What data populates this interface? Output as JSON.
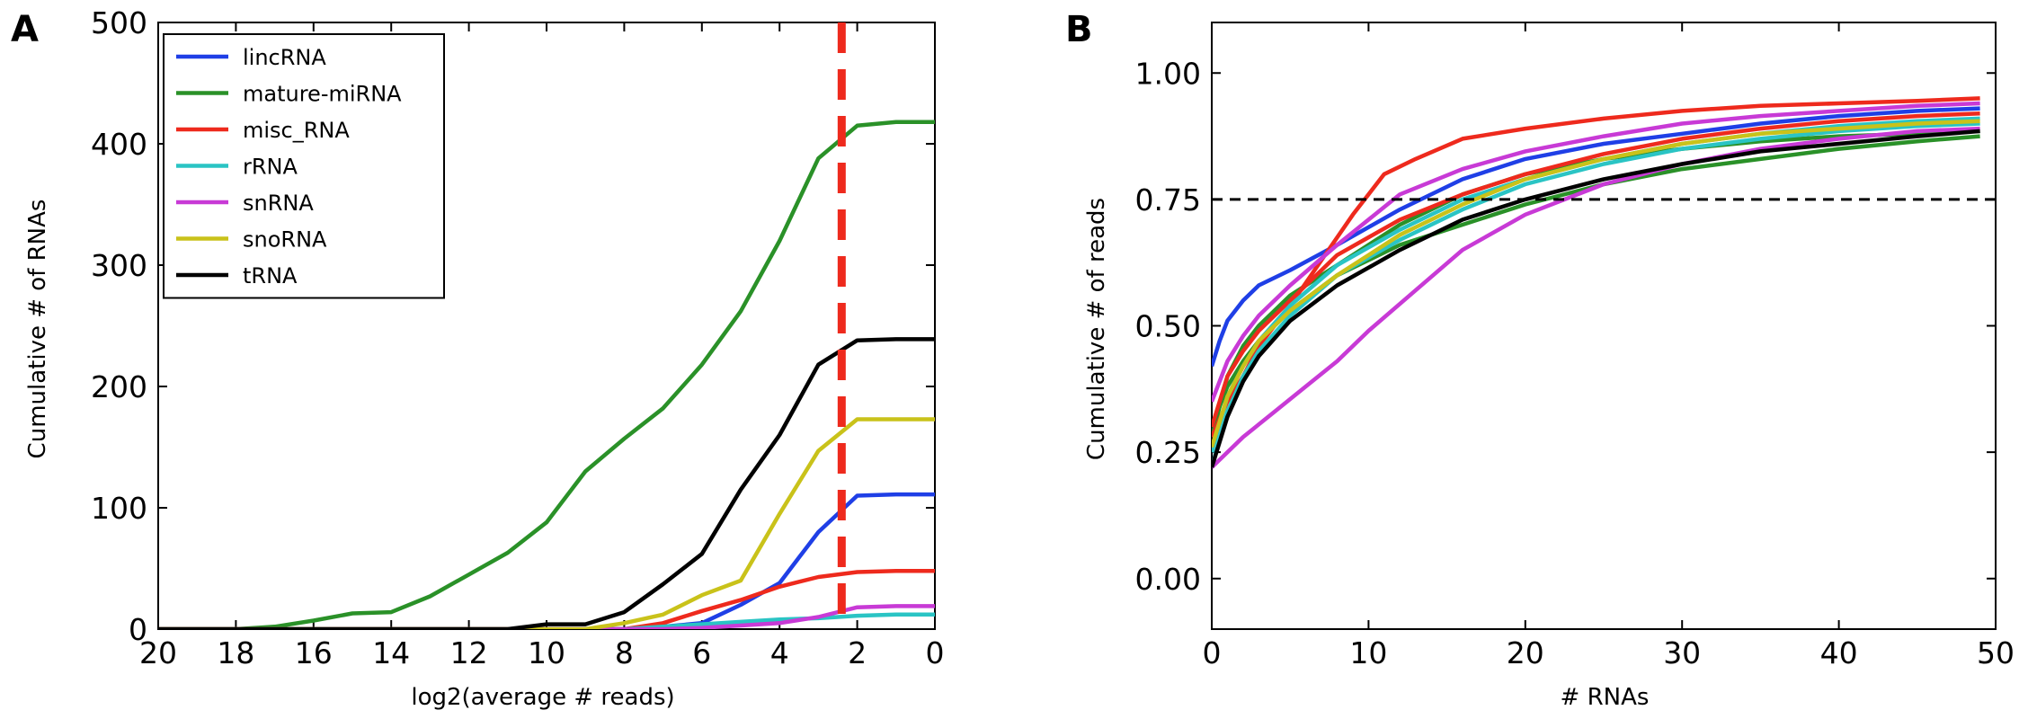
{
  "chart_data": [
    {
      "panel_label": "A",
      "type": "line",
      "xlabel": "log2(average # reads)",
      "ylabel": "Cumulative # of RNAs",
      "xlim": [
        20,
        0
      ],
      "ylim": [
        0,
        500
      ],
      "x_reversed": true,
      "xticks": [
        "20",
        "18",
        "16",
        "14",
        "12",
        "10",
        "8",
        "6",
        "4",
        "2",
        "0"
      ],
      "yticks": [
        "0",
        "100",
        "200",
        "300",
        "400",
        "500"
      ],
      "legend_position": "top-left",
      "vline": {
        "x": 2.4,
        "color": "#ee2a1d",
        "style": "dashed"
      },
      "series": [
        {
          "name": "lincRNA",
          "color": "#1f3fe6",
          "x": [
            20,
            10,
            9,
            8,
            7,
            6,
            5,
            4,
            3,
            2,
            1,
            0
          ],
          "y": [
            0,
            0,
            0,
            0,
            2,
            5,
            20,
            38,
            80,
            110,
            111,
            111
          ]
        },
        {
          "name": "mature-miRNA",
          "color": "#2a9128",
          "x": [
            20,
            18,
            17,
            16,
            15,
            14,
            13,
            12,
            11,
            10,
            9,
            8,
            7,
            6,
            5,
            4,
            3,
            2,
            1,
            0
          ],
          "y": [
            0,
            0,
            2,
            7,
            13,
            14,
            27,
            45,
            63,
            88,
            130,
            157,
            182,
            218,
            262,
            320,
            388,
            415,
            418,
            418
          ]
        },
        {
          "name": "misc_RNA",
          "color": "#ee2a1d",
          "x": [
            20,
            10,
            9,
            8,
            7,
            6,
            5,
            4,
            3,
            2,
            1,
            0
          ],
          "y": [
            0,
            0,
            0,
            0,
            5,
            15,
            24,
            35,
            43,
            47,
            48,
            48
          ]
        },
        {
          "name": "rRNA",
          "color": "#2ac4c4",
          "x": [
            20,
            10,
            9,
            8,
            7,
            6,
            5,
            4,
            3,
            2,
            1,
            0
          ],
          "y": [
            0,
            0,
            0,
            0,
            2,
            4,
            6,
            8,
            9,
            11,
            12,
            12
          ]
        },
        {
          "name": "snRNA",
          "color": "#c83ad6",
          "x": [
            20,
            10,
            9,
            8,
            7,
            6,
            5,
            4,
            3,
            2,
            1,
            0
          ],
          "y": [
            0,
            0,
            0,
            0,
            0,
            1,
            3,
            5,
            10,
            18,
            19,
            19
          ]
        },
        {
          "name": "snoRNA",
          "color": "#c9c21a",
          "x": [
            20,
            10,
            9,
            8,
            7,
            6,
            5,
            4,
            3,
            2,
            1,
            0
          ],
          "y": [
            0,
            0,
            0,
            5,
            12,
            28,
            40,
            95,
            147,
            173,
            173,
            173
          ]
        },
        {
          "name": "tRNA",
          "color": "#000000",
          "x": [
            20,
            11,
            10,
            9,
            8,
            7,
            6,
            5,
            4,
            3,
            2,
            1,
            0
          ],
          "y": [
            0,
            0,
            4,
            4,
            14,
            37,
            62,
            115,
            160,
            218,
            238,
            239,
            239
          ]
        }
      ]
    },
    {
      "panel_label": "B",
      "type": "line",
      "xlabel": "# RNAs",
      "ylabel": "Cumulative # of reads",
      "xlim": [
        0,
        50
      ],
      "ylim": [
        -0.1,
        1.1
      ],
      "xticks": [
        "0",
        "10",
        "20",
        "30",
        "40",
        "50"
      ],
      "yticks": [
        "0.00",
        "0.25",
        "0.50",
        "0.75",
        "1.00"
      ],
      "hline": {
        "y": 0.75,
        "color": "#000000",
        "style": "dashed"
      },
      "series": [
        {
          "color": "#1f3fe6",
          "x": [
            0,
            0.5,
            1,
            2,
            3,
            5,
            8,
            12,
            16,
            20,
            25,
            30,
            35,
            40,
            45,
            49
          ],
          "y": [
            0.42,
            0.47,
            0.51,
            0.55,
            0.58,
            0.61,
            0.66,
            0.73,
            0.79,
            0.83,
            0.86,
            0.88,
            0.9,
            0.915,
            0.925,
            0.93
          ]
        },
        {
          "color": "#2a9128",
          "x": [
            0,
            1,
            2,
            3,
            5,
            8,
            12,
            16,
            20,
            25,
            30,
            35,
            40,
            45,
            49
          ],
          "y": [
            0.3,
            0.38,
            0.43,
            0.47,
            0.53,
            0.6,
            0.66,
            0.7,
            0.74,
            0.78,
            0.81,
            0.83,
            0.85,
            0.865,
            0.875
          ]
        },
        {
          "color": "#2a9128",
          "x": [
            0,
            1,
            2,
            3,
            5,
            8,
            12,
            16,
            20,
            25,
            30,
            35,
            40,
            45,
            49
          ],
          "y": [
            0.28,
            0.4,
            0.46,
            0.5,
            0.56,
            0.62,
            0.7,
            0.76,
            0.8,
            0.83,
            0.85,
            0.865,
            0.875,
            0.88,
            0.885
          ]
        },
        {
          "color": "#ee2a1d",
          "x": [
            0,
            1,
            2,
            3,
            5,
            7,
            9,
            11,
            13,
            16,
            20,
            25,
            30,
            35,
            40,
            45,
            49
          ],
          "y": [
            0.28,
            0.35,
            0.4,
            0.46,
            0.54,
            0.63,
            0.72,
            0.8,
            0.83,
            0.87,
            0.89,
            0.91,
            0.925,
            0.935,
            0.94,
            0.945,
            0.95
          ]
        },
        {
          "color": "#ee2a1d",
          "x": [
            0,
            1,
            2,
            3,
            5,
            8,
            12,
            16,
            20,
            25,
            30,
            35,
            40,
            45,
            49
          ],
          "y": [
            0.3,
            0.4,
            0.45,
            0.49,
            0.55,
            0.64,
            0.71,
            0.76,
            0.8,
            0.84,
            0.87,
            0.89,
            0.905,
            0.915,
            0.92
          ]
        },
        {
          "color": "#2ac4c4",
          "x": [
            0,
            1,
            2,
            3,
            5,
            8,
            12,
            16,
            20,
            25,
            30,
            35,
            40,
            45,
            49
          ],
          "y": [
            0.22,
            0.33,
            0.4,
            0.45,
            0.52,
            0.6,
            0.67,
            0.73,
            0.78,
            0.82,
            0.85,
            0.87,
            0.885,
            0.895,
            0.9
          ]
        },
        {
          "color": "#2ac4c4",
          "x": [
            0,
            1,
            2,
            3,
            5,
            8,
            12,
            16,
            20,
            25,
            30,
            35,
            40,
            45,
            49
          ],
          "y": [
            0.25,
            0.36,
            0.42,
            0.47,
            0.54,
            0.62,
            0.69,
            0.75,
            0.79,
            0.83,
            0.86,
            0.88,
            0.895,
            0.905,
            0.91
          ]
        },
        {
          "color": "#c83ad6",
          "x": [
            0,
            2,
            4,
            6,
            8,
            10,
            13,
            16,
            20,
            25,
            30,
            35,
            40,
            45,
            49
          ],
          "y": [
            0.22,
            0.28,
            0.33,
            0.38,
            0.43,
            0.49,
            0.57,
            0.65,
            0.72,
            0.78,
            0.82,
            0.85,
            0.87,
            0.885,
            0.89
          ]
        },
        {
          "color": "#c83ad6",
          "x": [
            0,
            1,
            2,
            3,
            5,
            8,
            12,
            16,
            20,
            25,
            30,
            35,
            40,
            45,
            49
          ],
          "y": [
            0.35,
            0.43,
            0.48,
            0.52,
            0.58,
            0.66,
            0.76,
            0.81,
            0.845,
            0.875,
            0.9,
            0.915,
            0.925,
            0.935,
            0.94
          ]
        },
        {
          "color": "#c9c21a",
          "x": [
            0,
            1,
            2,
            3,
            5,
            8,
            12,
            16,
            20,
            25,
            30,
            35,
            40,
            45,
            49
          ],
          "y": [
            0.26,
            0.36,
            0.42,
            0.47,
            0.53,
            0.6,
            0.68,
            0.74,
            0.79,
            0.83,
            0.86,
            0.88,
            0.89,
            0.9,
            0.905
          ]
        },
        {
          "color": "#000000",
          "x": [
            0,
            1,
            2,
            3,
            5,
            8,
            12,
            16,
            20,
            25,
            30,
            35,
            40,
            45,
            49
          ],
          "y": [
            0.22,
            0.32,
            0.39,
            0.44,
            0.51,
            0.58,
            0.65,
            0.71,
            0.75,
            0.79,
            0.82,
            0.845,
            0.86,
            0.875,
            0.885
          ]
        }
      ]
    }
  ]
}
